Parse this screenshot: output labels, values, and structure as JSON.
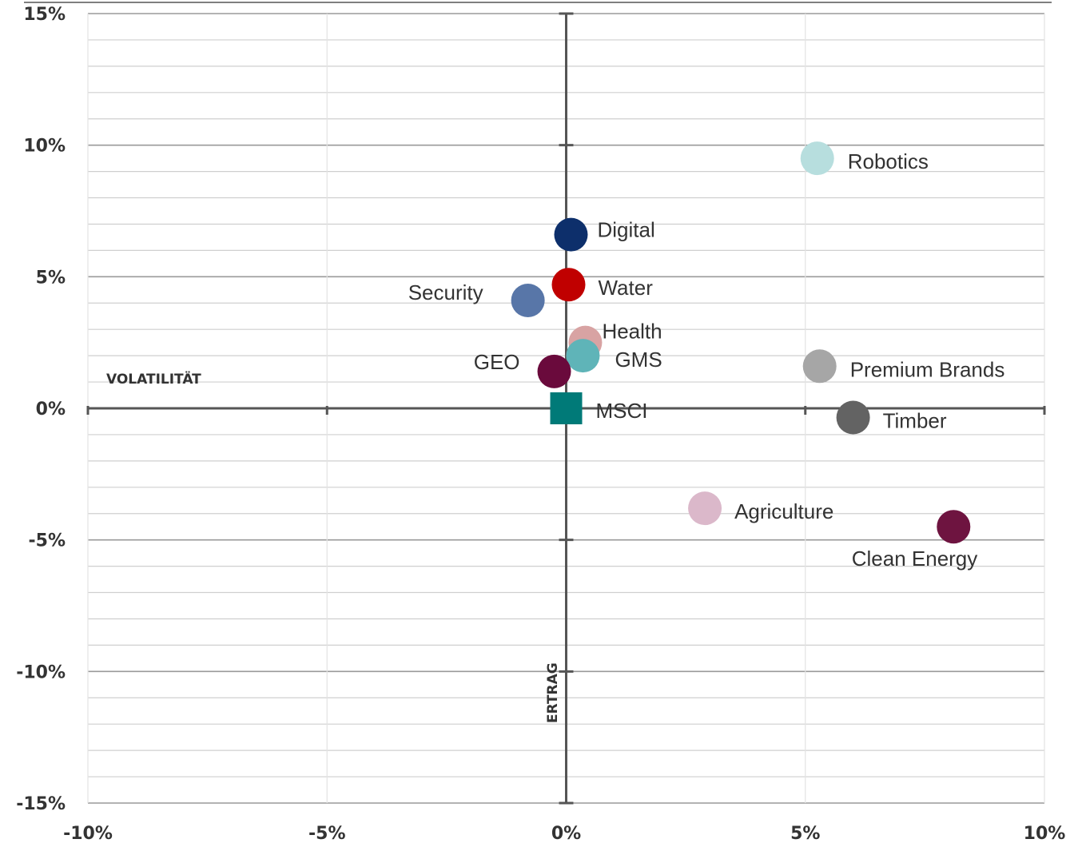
{
  "chart_data": {
    "type": "scatter",
    "title": "",
    "xlabel": "VOLATILITÄT",
    "ylabel": "ERTRAG",
    "xlim": [
      -10,
      10
    ],
    "ylim": [
      -15,
      15
    ],
    "x_ticks": [
      -10,
      -5,
      0,
      5,
      10
    ],
    "y_ticks": [
      15,
      10,
      5,
      0,
      -5,
      -10,
      -15
    ],
    "x_tick_labels": [
      "-10%",
      "-5%",
      "0%",
      "5%",
      "10%"
    ],
    "y_tick_labels": [
      "15%",
      "10%",
      "5%",
      "0%",
      "-5%",
      "-10%",
      "-15%"
    ],
    "grid": true,
    "legend": "none",
    "points": [
      {
        "label": "Robotics",
        "x": 5.25,
        "y": 9.5,
        "color": "#b7dede",
        "marker": "circle"
      },
      {
        "label": "Digital",
        "x": 0.1,
        "y": 6.6,
        "color": "#0d2f6b",
        "marker": "circle"
      },
      {
        "label": "Water",
        "x": 0.05,
        "y": 4.7,
        "color": "#c00000",
        "marker": "circle"
      },
      {
        "label": "Security",
        "x": -0.8,
        "y": 4.1,
        "color": "#5876a8",
        "marker": "circle"
      },
      {
        "label": "Health",
        "x": 0.4,
        "y": 2.5,
        "color": "#d8a3a3",
        "marker": "circle"
      },
      {
        "label": "GMS",
        "x": 0.35,
        "y": 2.0,
        "color": "#5fb4b8",
        "marker": "circle"
      },
      {
        "label": "GEO",
        "x": -0.25,
        "y": 1.4,
        "color": "#6a0a3c",
        "marker": "circle"
      },
      {
        "label": "Premium Brands",
        "x": 5.3,
        "y": 1.6,
        "color": "#a6a6a6",
        "marker": "circle"
      },
      {
        "label": "MSCI",
        "x": 0.0,
        "y": 0.0,
        "color": "#007a78",
        "marker": "square"
      },
      {
        "label": "Timber",
        "x": 6.0,
        "y": -0.35,
        "color": "#636363",
        "marker": "circle"
      },
      {
        "label": "Agriculture",
        "x": 2.9,
        "y": -3.8,
        "color": "#dbb8ca",
        "marker": "circle"
      },
      {
        "label": "Clean Energy",
        "x": 8.1,
        "y": -4.5,
        "color": "#6e1440",
        "marker": "circle"
      }
    ]
  }
}
